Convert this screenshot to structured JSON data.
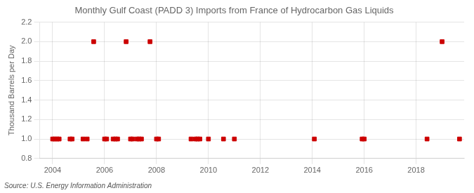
{
  "chart_data": {
    "type": "scatter",
    "title": "Monthly Gulf Coast (PADD 3) Imports from France of Hydrocarbon Gas Liquids",
    "ylabel": "Thousand Barrels per Day",
    "annotations": [
      "Source: U.S. Energy Information Administration"
    ],
    "color": "#cc0000",
    "marker": "square",
    "grid": true,
    "xlim": [
      2003.5,
      2019.85
    ],
    "xticks": [
      2004,
      2006,
      2008,
      2010,
      2012,
      2014,
      2016,
      2018
    ],
    "ylim": [
      0.8,
      2.2
    ],
    "yticks": [
      0.8,
      {
        "value": 1.0,
        "label": "1.0"
      },
      1.2,
      1.4,
      1.6,
      1.8,
      {
        "value": 2.0,
        "label": "2.0"
      },
      2.2
    ],
    "x": [
      2004.0,
      2004.08,
      2004.17,
      2004.25,
      2004.67,
      2004.75,
      2005.17,
      2005.33,
      2005.58,
      2006.0,
      2006.08,
      2006.33,
      2006.42,
      2006.5,
      2006.83,
      2007.0,
      2007.08,
      2007.25,
      2007.33,
      2007.42,
      2007.75,
      2008.0,
      2008.08,
      2009.33,
      2009.5,
      2009.58,
      2009.67,
      2010.0,
      2010.58,
      2011.0,
      2014.08,
      2015.92,
      2016.0,
      2018.42,
      2019.0,
      2019.67
    ],
    "values": [
      1.0,
      1.0,
      1.0,
      1.0,
      1.0,
      1.0,
      1.0,
      1.0,
      2.0,
      1.0,
      1.0,
      1.0,
      1.0,
      1.0,
      2.0,
      1.0,
      1.0,
      1.0,
      1.0,
      1.0,
      2.0,
      1.0,
      1.0,
      1.0,
      1.0,
      1.0,
      1.0,
      1.0,
      1.0,
      1.0,
      1.0,
      1.0,
      1.0,
      1.0,
      2.0,
      1.0
    ]
  }
}
